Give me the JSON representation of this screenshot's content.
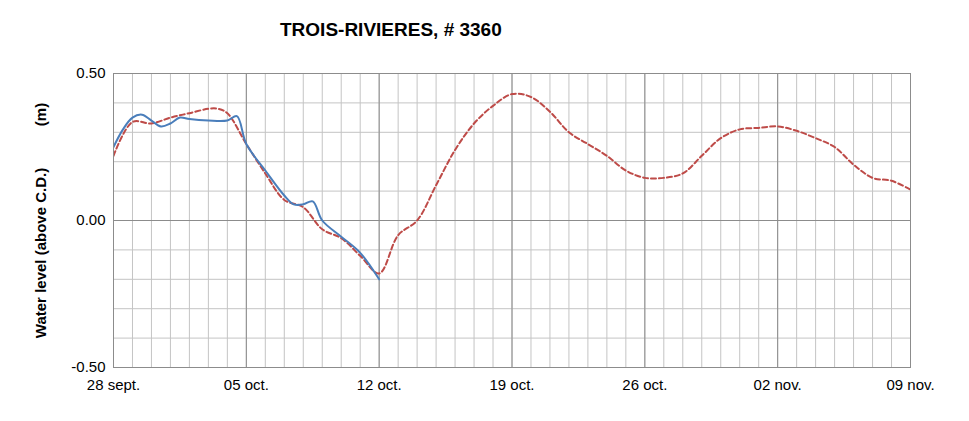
{
  "chart_data": {
    "type": "line",
    "title": "TROIS-RIVIERES, # 3360",
    "y_label": "Water level (above C.D.)          (m)",
    "xlim": [
      0,
      42
    ],
    "xticks": [
      {
        "value": 0,
        "label": "28 sept."
      },
      {
        "value": 7,
        "label": "05 oct."
      },
      {
        "value": 14,
        "label": "12 oct."
      },
      {
        "value": 21,
        "label": "19 oct."
      },
      {
        "value": 28,
        "label": "26 oct."
      },
      {
        "value": 35,
        "label": "02 nov."
      },
      {
        "value": 42,
        "label": "09 nov."
      }
    ],
    "ylim": [
      -0.5,
      0.5
    ],
    "yticks": [
      {
        "value": -0.5,
        "label": "-0.50"
      },
      {
        "value": 0,
        "label": "0.00"
      },
      {
        "value": 0.5,
        "label": "0.50"
      }
    ],
    "grid": true,
    "series": [
      {
        "color": "#be4b48",
        "line_style": "dashed",
        "x": [
          0,
          1,
          2,
          3,
          4,
          5,
          5.5,
          6,
          7,
          8,
          9,
          10,
          11,
          12,
          13,
          14,
          15,
          16,
          17,
          18,
          19,
          20,
          21,
          22,
          23,
          24,
          25,
          26,
          27,
          28,
          29,
          30,
          31,
          32,
          33,
          34,
          35,
          36,
          37,
          38,
          39,
          40,
          41,
          42
        ],
        "values": [
          0.22,
          0.335,
          0.33,
          0.35,
          0.365,
          0.38,
          0.38,
          0.365,
          0.26,
          0.16,
          0.07,
          0.045,
          -0.03,
          -0.06,
          -0.12,
          -0.18,
          -0.05,
          0.0,
          0.12,
          0.24,
          0.33,
          0.39,
          0.43,
          0.42,
          0.37,
          0.3,
          0.26,
          0.22,
          0.17,
          0.145,
          0.145,
          0.16,
          0.22,
          0.28,
          0.31,
          0.315,
          0.32,
          0.305,
          0.28,
          0.25,
          0.19,
          0.145,
          0.135,
          0.105
        ]
      },
      {
        "color": "#4a7ebb",
        "line_style": "solid",
        "x": [
          0,
          0.5,
          1,
          1.5,
          2,
          2.5,
          3,
          3.5,
          4,
          5,
          6,
          6.5,
          7,
          8,
          9,
          9.5,
          10,
          10.5,
          11,
          12,
          13,
          14
        ],
        "values": [
          0.25,
          0.31,
          0.35,
          0.36,
          0.34,
          0.32,
          0.33,
          0.35,
          0.345,
          0.34,
          0.34,
          0.355,
          0.26,
          0.17,
          0.085,
          0.055,
          0.055,
          0.065,
          0.0,
          -0.055,
          -0.11,
          -0.2
        ]
      }
    ]
  }
}
